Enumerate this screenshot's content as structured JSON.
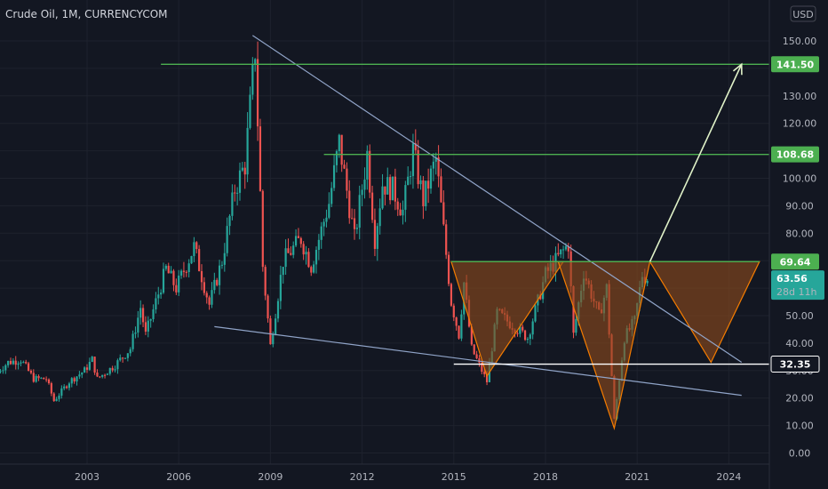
{
  "header": {
    "title": "Crude Oil, 1M, CURRENCYCOM",
    "currency": "USD"
  },
  "colors": {
    "background": "#131722",
    "up_candle": "#26a69a",
    "down_candle": "#ef5350",
    "resistance_line": "#4caf50",
    "trend_line": "#90a4c8",
    "pattern_fill": "#8d4a1c",
    "pattern_stroke": "#f57c00",
    "projection_arrow": "#e0f2c8",
    "support_line": "#ffffff"
  },
  "chart_data": {
    "type": "candlestick",
    "x_ticks": [
      "2003",
      "2006",
      "2009",
      "2012",
      "2015",
      "2018",
      "2021",
      "2024"
    ],
    "y_ticks": [
      "0.00",
      "10.00",
      "20.00",
      "30.00",
      "40.00",
      "50.00",
      "60.00",
      "70.00",
      "80.00",
      "90.00",
      "100.00",
      "110.00",
      "120.00",
      "130.00",
      "140.00",
      "150.00"
    ],
    "ylim": [
      -5,
      160
    ],
    "price_series": [
      [
        "2000-01",
        29
      ],
      [
        "2000-06",
        33
      ],
      [
        "2000-11",
        34
      ],
      [
        "2001-04",
        27
      ],
      [
        "2001-09",
        27
      ],
      [
        "2001-12",
        19
      ],
      [
        "2002-06",
        26
      ],
      [
        "2002-12",
        30
      ],
      [
        "2003-03",
        34
      ],
      [
        "2003-05",
        27
      ],
      [
        "2003-12",
        32
      ],
      [
        "2004-06",
        38
      ],
      [
        "2004-10",
        53
      ],
      [
        "2004-12",
        43
      ],
      [
        "2005-08",
        67
      ],
      [
        "2005-12",
        60
      ],
      [
        "2006-07",
        75
      ],
      [
        "2007-01",
        54
      ],
      [
        "2007-06",
        70
      ],
      [
        "2007-11",
        96
      ],
      [
        "2008-03",
        105
      ],
      [
        "2008-07",
        147
      ],
      [
        "2008-10",
        68
      ],
      [
        "2009-01",
        39
      ],
      [
        "2009-06",
        70
      ],
      [
        "2010-01",
        78
      ],
      [
        "2010-05",
        68
      ],
      [
        "2010-12",
        91
      ],
      [
        "2011-04",
        113
      ],
      [
        "2011-10",
        78
      ],
      [
        "2012-03",
        109
      ],
      [
        "2012-06",
        78
      ],
      [
        "2012-09",
        98
      ],
      [
        "2013-01",
        96
      ],
      [
        "2013-05",
        88
      ],
      [
        "2013-09",
        110
      ],
      [
        "2014-01",
        92
      ],
      [
        "2014-06",
        107
      ],
      [
        "2014-12",
        55
      ],
      [
        "2015-03",
        43
      ],
      [
        "2015-05",
        62
      ],
      [
        "2015-08",
        38
      ],
      [
        "2016-02",
        26
      ],
      [
        "2016-06",
        51
      ],
      [
        "2017-06",
        42
      ],
      [
        "2018-01",
        65
      ],
      [
        "2018-10",
        76
      ],
      [
        "2018-12",
        43
      ],
      [
        "2019-04",
        66
      ],
      [
        "2019-10",
        50
      ],
      [
        "2020-01",
        60
      ],
      [
        "2020-04",
        12
      ],
      [
        "2020-08",
        42
      ],
      [
        "2020-12",
        48
      ],
      [
        "2021-03",
        65
      ],
      [
        "2021-05",
        63.56
      ]
    ],
    "levels": [
      {
        "label": "141.50",
        "value": 141.5,
        "color": "#4caf50"
      },
      {
        "label": "108.68",
        "value": 108.68,
        "color": "#4caf50"
      },
      {
        "label": "69.64",
        "value": 69.64,
        "color": "#4caf50"
      },
      {
        "label": "32.35",
        "value": 32.35,
        "color": "#ffffff"
      }
    ],
    "current_price": {
      "label": "63.56",
      "countdown": "28d 11h",
      "value": 63.56
    },
    "trend_lines": [
      {
        "from": [
          "2008-06",
          152
        ],
        "to": [
          "2024-06",
          33
        ]
      },
      {
        "from": [
          "2007-03",
          46
        ],
        "to": [
          "2024-06",
          21
        ]
      }
    ],
    "pattern_triangles": [
      {
        "points": [
          [
            "2014-12",
            69.64
          ],
          [
            "2016-02",
            28
          ],
          [
            "2018-08",
            69.64
          ]
        ]
      },
      {
        "points": [
          [
            "2018-06",
            69.64
          ],
          [
            "2020-04",
            9
          ],
          [
            "2021-06",
            69.64
          ]
        ]
      },
      {
        "points": [
          [
            "2021-06",
            69.64
          ],
          [
            "2023-06",
            33
          ],
          [
            "2025-01",
            69.64
          ]
        ]
      }
    ],
    "projection_arrow": {
      "from": [
        "2021-06",
        69.64
      ],
      "to": [
        "2024-06",
        141.5
      ]
    }
  }
}
